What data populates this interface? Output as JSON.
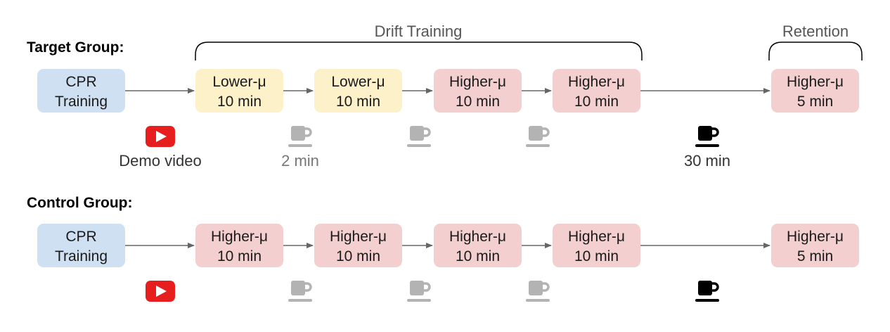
{
  "colors": {
    "blue": "#cfe0f3",
    "yellow": "#fdf1c9",
    "red": "#f3cfd0",
    "arrow": "#666666",
    "youtube": "#e61e1e",
    "cup_gray": "#b3b3b3",
    "cup_black": "#000000",
    "caption_gray": "#777777",
    "caption_dark": "#333333"
  },
  "brackets": {
    "drift": "Drift Training",
    "retention": "Retention"
  },
  "groups": [
    {
      "label": "Target Group:",
      "boxes": [
        {
          "line1": "CPR",
          "line2": "Training",
          "color": "blue"
        },
        {
          "line1": "Lower-μ",
          "line2": "10 min",
          "color": "yellow"
        },
        {
          "line1": "Lower-μ",
          "line2": "10 min",
          "color": "yellow"
        },
        {
          "line1": "Higher-μ",
          "line2": "10 min",
          "color": "red"
        },
        {
          "line1": "Higher-μ",
          "line2": "10 min",
          "color": "red"
        },
        {
          "line1": "Higher-μ",
          "line2": "5 min",
          "color": "red"
        }
      ],
      "icons": [
        {
          "type": "youtube",
          "caption": "Demo video"
        },
        {
          "type": "cup",
          "tone": "gray",
          "caption": "2 min"
        },
        {
          "type": "cup",
          "tone": "gray",
          "caption": ""
        },
        {
          "type": "cup",
          "tone": "gray",
          "caption": ""
        },
        {
          "type": "cup",
          "tone": "black",
          "caption": "30 min"
        }
      ]
    },
    {
      "label": "Control Group:",
      "boxes": [
        {
          "line1": "CPR",
          "line2": "Training",
          "color": "blue"
        },
        {
          "line1": "Higher-μ",
          "line2": "10 min",
          "color": "red"
        },
        {
          "line1": "Higher-μ",
          "line2": "10 min",
          "color": "red"
        },
        {
          "line1": "Higher-μ",
          "line2": "10 min",
          "color": "red"
        },
        {
          "line1": "Higher-μ",
          "line2": "10 min",
          "color": "red"
        },
        {
          "line1": "Higher-μ",
          "line2": "5 min",
          "color": "red"
        }
      ],
      "icons": [
        {
          "type": "youtube",
          "caption": ""
        },
        {
          "type": "cup",
          "tone": "gray",
          "caption": ""
        },
        {
          "type": "cup",
          "tone": "gray",
          "caption": ""
        },
        {
          "type": "cup",
          "tone": "gray",
          "caption": ""
        },
        {
          "type": "cup",
          "tone": "black",
          "caption": ""
        }
      ]
    }
  ]
}
